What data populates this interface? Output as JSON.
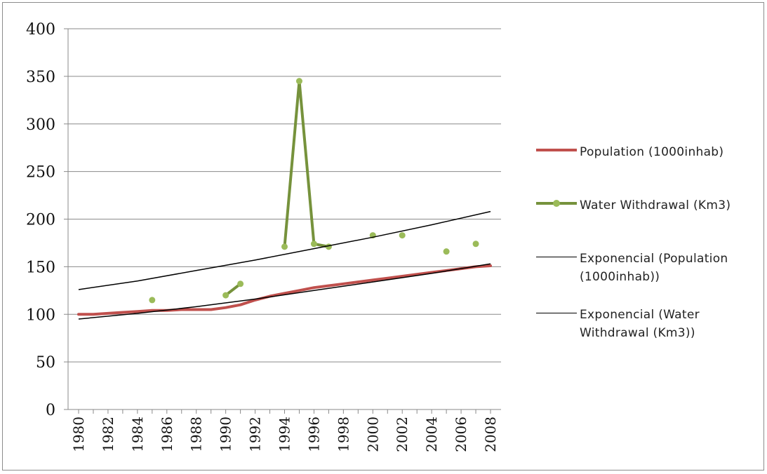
{
  "chart_data": {
    "type": "line",
    "title": "",
    "xlabel": "",
    "ylabel": "",
    "ylim": [
      0,
      400
    ],
    "yticks": [
      0,
      50,
      100,
      150,
      200,
      250,
      300,
      350,
      400
    ],
    "xlim": [
      1980,
      2008
    ],
    "xticks": [
      "1980",
      "1982",
      "1984",
      "1986",
      "1988",
      "1990",
      "1992",
      "1994",
      "1996",
      "1998",
      "2000",
      "2002",
      "2004",
      "2006",
      "2008"
    ],
    "grid": "horizontal",
    "legend_position": "right",
    "series": [
      {
        "name": "Population (1000inhab)",
        "color": "#c0504d",
        "style": "line",
        "points": [
          [
            1980,
            100
          ],
          [
            1981,
            100
          ],
          [
            1982,
            101
          ],
          [
            1983,
            102
          ],
          [
            1984,
            103
          ],
          [
            1985,
            104
          ],
          [
            1986,
            104
          ],
          [
            1987,
            105
          ],
          [
            1988,
            105
          ],
          [
            1989,
            105
          ],
          [
            1990,
            107
          ],
          [
            1991,
            110
          ],
          [
            1992,
            115
          ],
          [
            1993,
            119
          ],
          [
            1994,
            122
          ],
          [
            1995,
            125
          ],
          [
            1996,
            128
          ],
          [
            1997,
            130
          ],
          [
            1998,
            132
          ],
          [
            1999,
            134
          ],
          [
            2000,
            136
          ],
          [
            2001,
            138
          ],
          [
            2002,
            140
          ],
          [
            2003,
            142
          ],
          [
            2004,
            144
          ],
          [
            2005,
            146
          ],
          [
            2006,
            148
          ],
          [
            2007,
            150
          ],
          [
            2008,
            151
          ]
        ]
      },
      {
        "name": "Water Withdrawal (Km3)",
        "color": "#76923c",
        "style": "line-markers",
        "segments": [
          [
            [
              1985,
              115
            ]
          ],
          [
            [
              1990,
              120
            ],
            [
              1991,
              132
            ]
          ],
          [
            [
              1994,
              171
            ],
            [
              1995,
              345
            ],
            [
              1996,
              174
            ],
            [
              1997,
              171
            ]
          ],
          [
            [
              2000,
              183
            ]
          ],
          [
            [
              2002,
              183
            ]
          ],
          [
            [
              2005,
              166
            ]
          ],
          [
            [
              2007,
              174
            ]
          ]
        ]
      },
      {
        "name": "Exponencial (Population (1000inhab))",
        "color": "#000000",
        "style": "trendline",
        "points": [
          [
            1980,
            95
          ],
          [
            1984,
            101
          ],
          [
            1988,
            108
          ],
          [
            1992,
            116
          ],
          [
            1996,
            125
          ],
          [
            2000,
            134
          ],
          [
            2004,
            143
          ],
          [
            2008,
            153
          ]
        ]
      },
      {
        "name": "Exponencial (Water Withdrawal (Km3))",
        "color": "#000000",
        "style": "trendline",
        "points": [
          [
            1980,
            126
          ],
          [
            1984,
            135
          ],
          [
            1988,
            146
          ],
          [
            1992,
            157
          ],
          [
            1996,
            169
          ],
          [
            2000,
            181
          ],
          [
            2004,
            194
          ],
          [
            2008,
            208
          ]
        ]
      }
    ]
  },
  "legend": {
    "items": [
      {
        "lines": [
          "Population (1000inhab)"
        ],
        "color": "#c0504d",
        "kind": "thick"
      },
      {
        "lines": [
          "Water Withdrawal (Km3)"
        ],
        "color": "#76923c",
        "kind": "marker"
      },
      {
        "lines": [
          "Exponencial (Population",
          "(1000inhab))"
        ],
        "color": "#000000",
        "kind": "thin"
      },
      {
        "lines": [
          "Exponencial (Water",
          "Withdrawal (Km3))"
        ],
        "color": "#000000",
        "kind": "thin"
      }
    ]
  }
}
